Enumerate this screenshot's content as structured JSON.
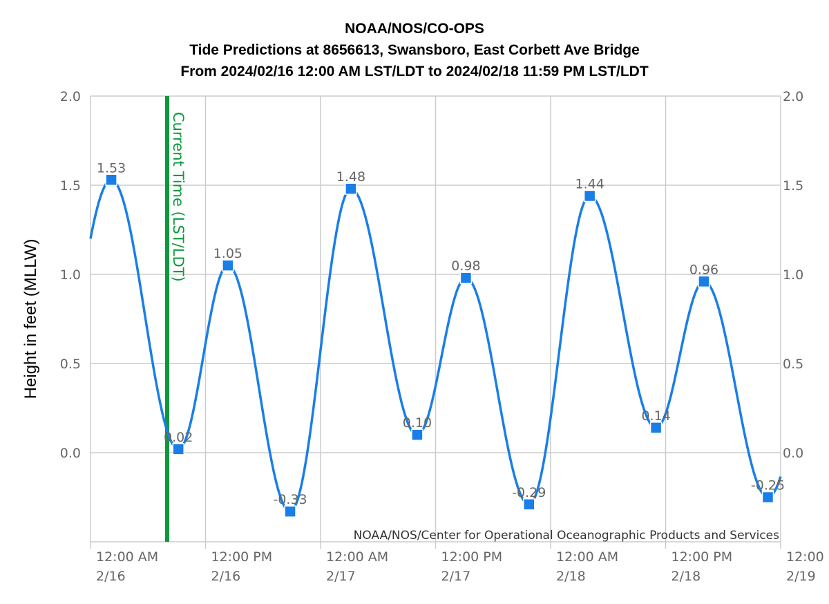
{
  "chart_data": {
    "type": "line",
    "title": "NOAA/NOS/CO-OPS",
    "subtitle": "Tide Predictions at 8656613, Swansboro, East Corbett Ave Bridge",
    "date_range": "From 2024/02/16 12:00 AM LST/LDT to 2024/02/18 11:59 PM LST/LDT",
    "ylabel": "Height in feet (MLLW)",
    "ylim": [
      -0.5,
      2.0
    ],
    "yticks": [
      "2.0",
      "1.5",
      "1.0",
      "0.5",
      "0.0"
    ],
    "xlim": [
      "2024-02-16 00:00",
      "2024-02-19 00:00"
    ],
    "xticks": [
      {
        "time": "12:00 AM",
        "date": "2/16"
      },
      {
        "time": "12:00 PM",
        "date": "2/16"
      },
      {
        "time": "12:00 AM",
        "date": "2/17"
      },
      {
        "time": "12:00 PM",
        "date": "2/17"
      },
      {
        "time": "12:00 AM",
        "date": "2/18"
      },
      {
        "time": "12:00 PM",
        "date": "2/18"
      },
      {
        "time": "12:00",
        "date": "2/19"
      }
    ],
    "current_time_label": "Current Time (LST/LDT)",
    "current_time": "2024-02-16 08:00",
    "series": [
      {
        "color": "#1a7ee8",
        "points": [
          {
            "x": "2024-02-16 02:10",
            "y": 1.53,
            "label": "1.53"
          },
          {
            "x": "2024-02-16 09:10",
            "y": 0.02,
            "label": "0.02"
          },
          {
            "x": "2024-02-16 14:20",
            "y": 1.05,
            "label": "1.05"
          },
          {
            "x": "2024-02-16 20:50",
            "y": -0.33,
            "label": "-0.33"
          },
          {
            "x": "2024-02-17 03:10",
            "y": 1.48,
            "label": "1.48"
          },
          {
            "x": "2024-02-17 10:05",
            "y": 0.1,
            "label": "0.10"
          },
          {
            "x": "2024-02-17 15:10",
            "y": 0.98,
            "label": "0.98"
          },
          {
            "x": "2024-02-17 21:45",
            "y": -0.29,
            "label": "-0.29"
          },
          {
            "x": "2024-02-18 04:05",
            "y": 1.44,
            "label": "1.44"
          },
          {
            "x": "2024-02-18 11:00",
            "y": 0.14,
            "label": "0.14"
          },
          {
            "x": "2024-02-18 16:00",
            "y": 0.96,
            "label": "0.96"
          },
          {
            "x": "2024-02-18 22:40",
            "y": -0.25,
            "label": "-0.25"
          }
        ]
      }
    ],
    "grid": true,
    "credit": "NOAA/NOS/Center for Operational Oceanographic Products and Services"
  }
}
